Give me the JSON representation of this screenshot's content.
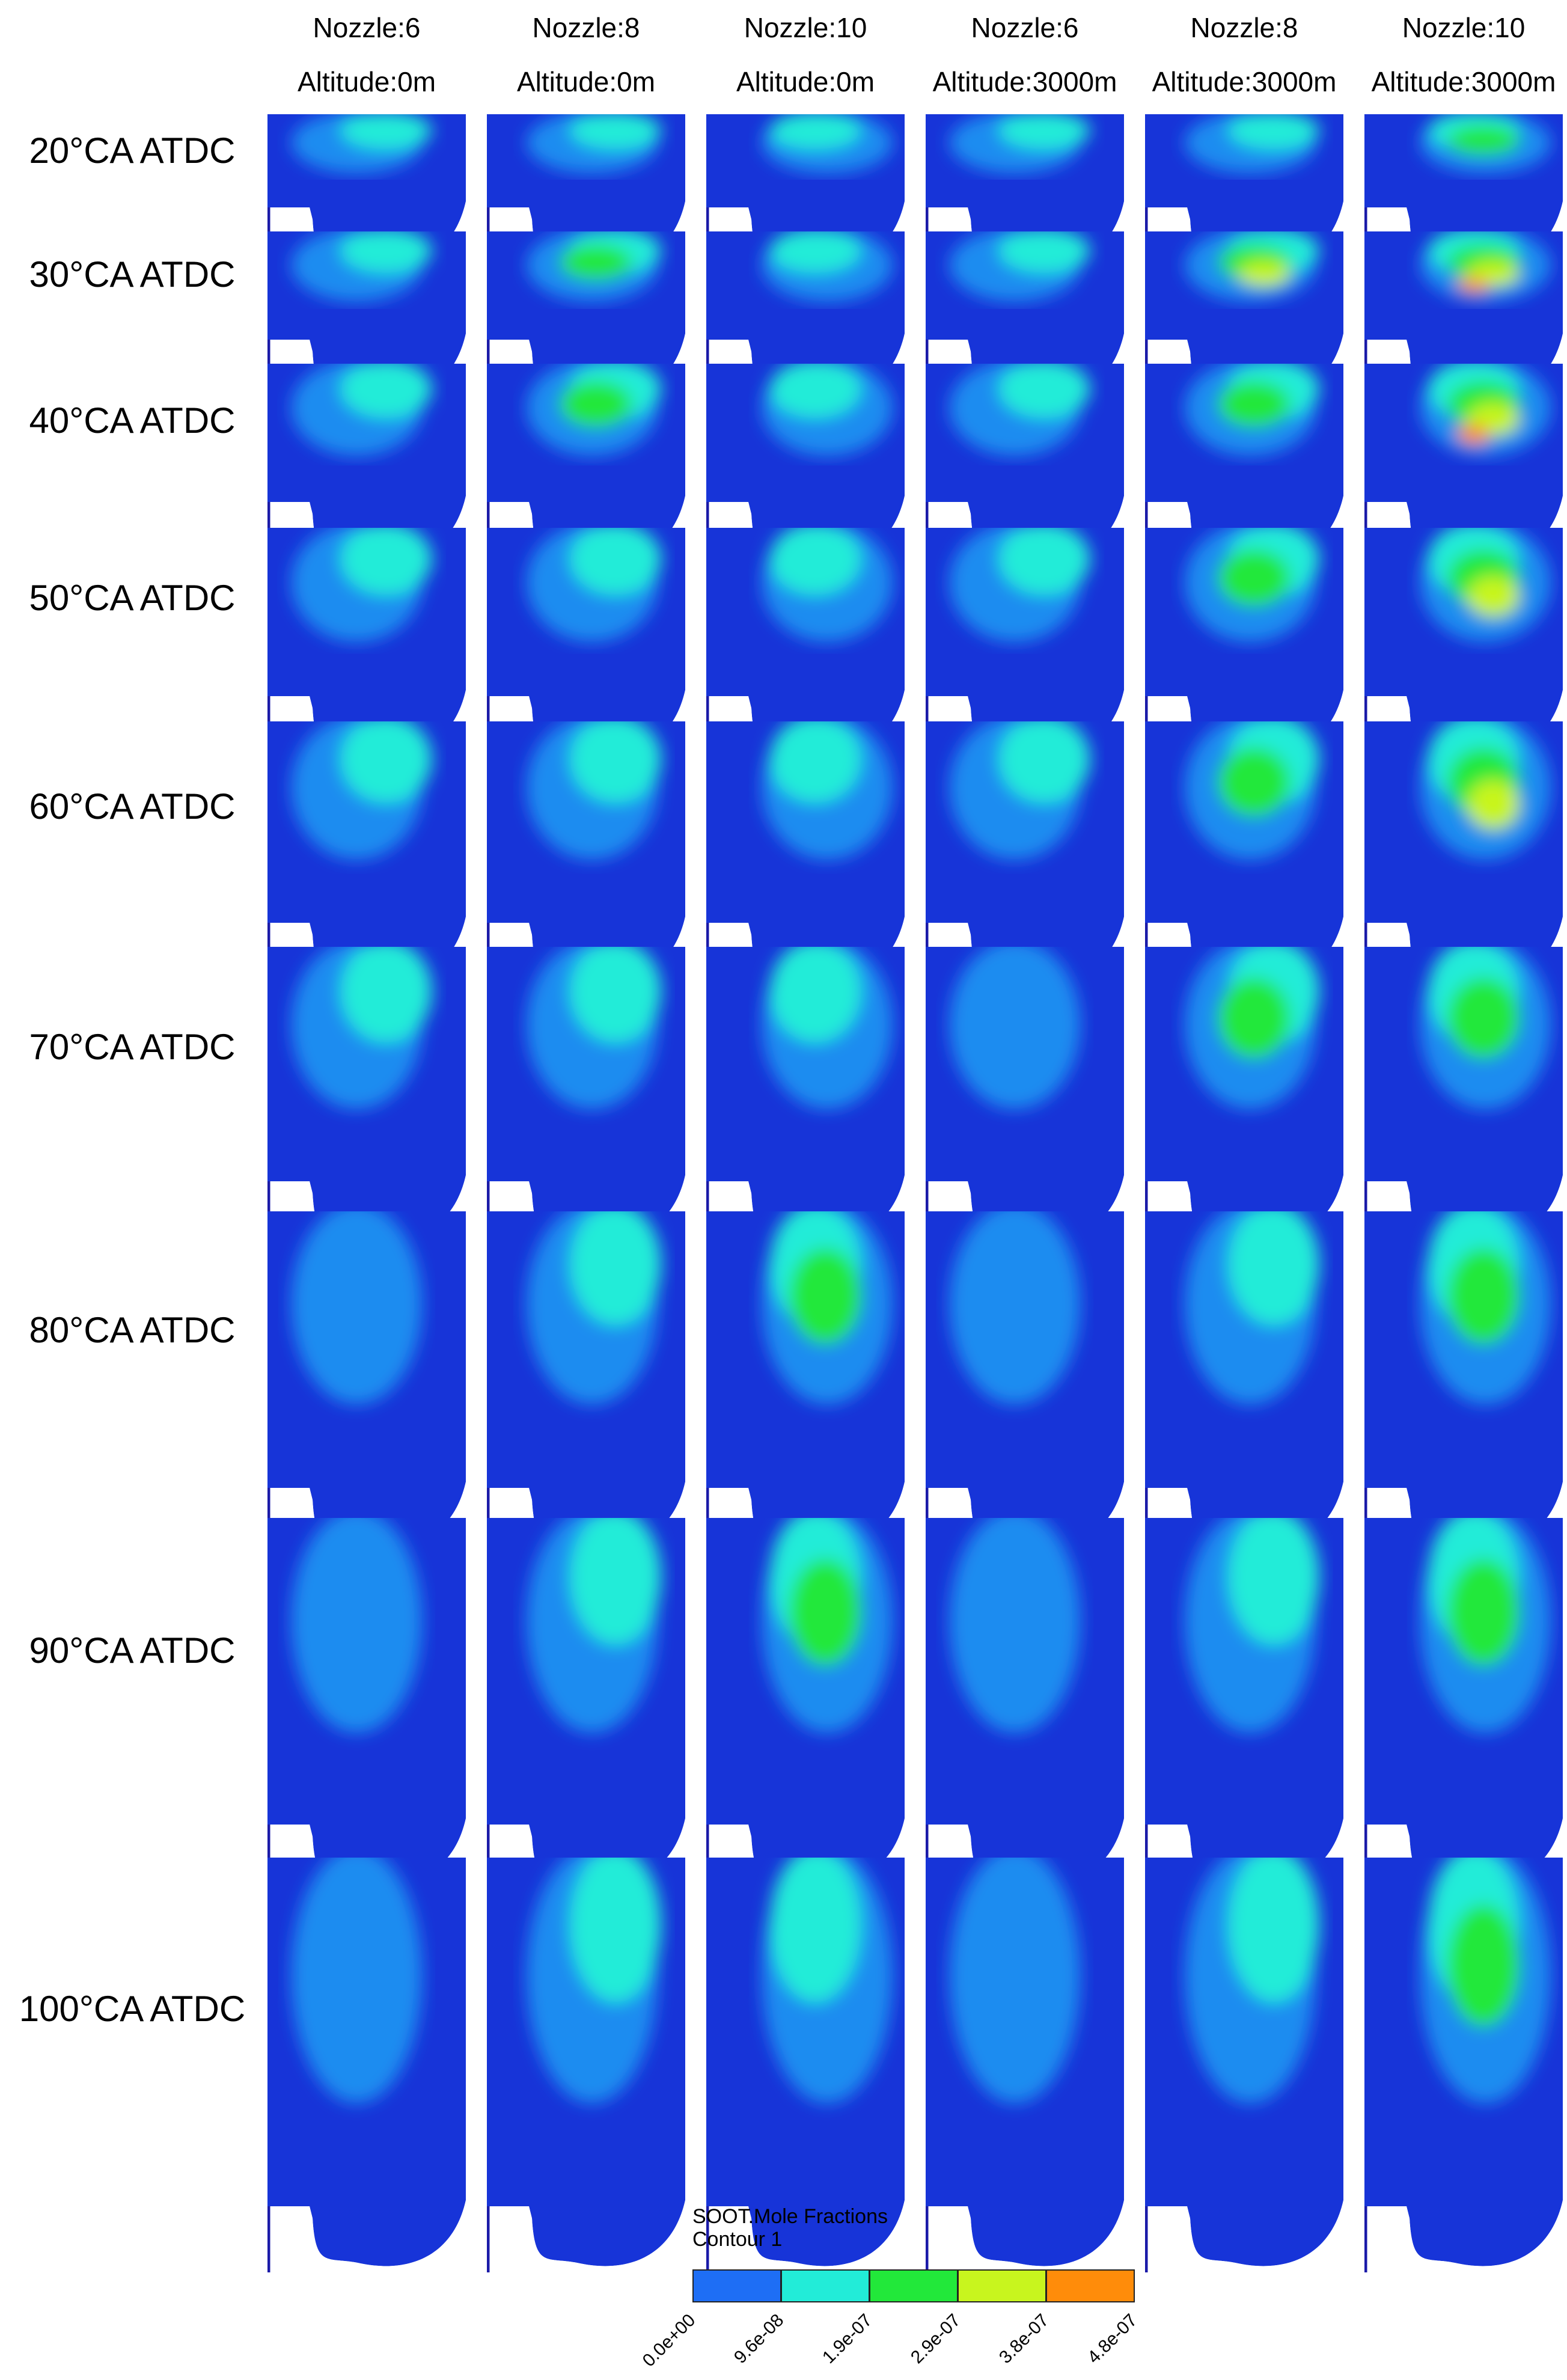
{
  "columns": [
    {
      "nozzle": "Nozzle:6",
      "altitude": "Altitude:0m"
    },
    {
      "nozzle": "Nozzle:8",
      "altitude": "Altitude:0m"
    },
    {
      "nozzle": "Nozzle:10",
      "altitude": "Altitude:0m"
    },
    {
      "nozzle": "Nozzle:6",
      "altitude": "Altitude:3000m"
    },
    {
      "nozzle": "Nozzle:8",
      "altitude": "Altitude:3000m"
    },
    {
      "nozzle": "Nozzle:10",
      "altitude": "Altitude:3000m"
    }
  ],
  "rows": [
    "20°CA ATDC",
    "30°CA ATDC",
    "40°CA ATDC",
    "50°CA ATDC",
    "60°CA ATDC",
    "70°CA ATDC",
    "80°CA ATDC",
    "90°CA ATDC",
    "100°CA ATDC"
  ],
  "legend": {
    "title": "SOOT.Mole Fractions",
    "subtitle": "Contour 1",
    "ticks": [
      "0.0e+00",
      "9.6e-08",
      "1.9e-07",
      "2.9e-07",
      "3.8e-07",
      "4.8e-07"
    ],
    "colors": [
      "#1e6ef5",
      "#22ecd8",
      "#22e83a",
      "#c8f51e",
      "#ff8c0a"
    ]
  },
  "colors": {
    "background_field": "#1734d8",
    "low_plume": "#1c8cf0",
    "wall": "#1a1aa8"
  }
}
